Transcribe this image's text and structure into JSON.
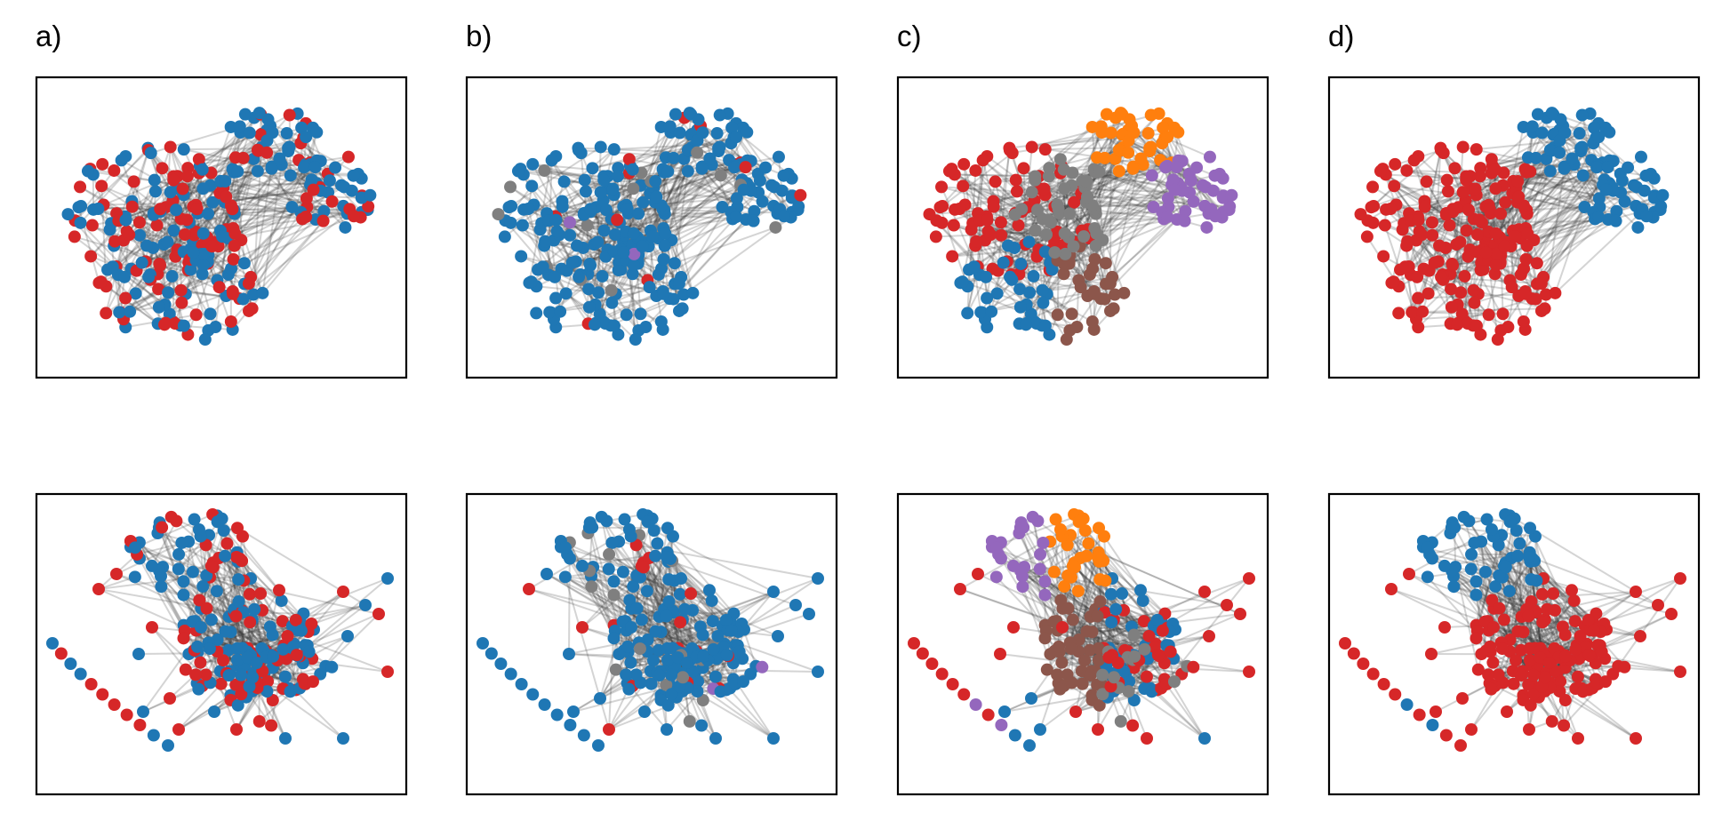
{
  "panels": [
    {
      "label": "a)"
    },
    {
      "label": "b)"
    },
    {
      "label": "c)"
    },
    {
      "label": "d)"
    }
  ],
  "colors": {
    "blue": "#1f77b4",
    "red": "#d62728",
    "gray": "#7f7f7f",
    "orange": "#ff7f0e",
    "purple": "#9467bd",
    "brown": "#8c564b",
    "edge": "#3a3a3a"
  },
  "networks": {
    "top": {
      "clusters": 5,
      "description_colors": {
        "a": [
          "blue",
          "red"
        ],
        "b": [
          "blue",
          "gray",
          "red",
          "purple"
        ],
        "c": [
          "red",
          "gray",
          "orange",
          "purple",
          "blue",
          "brown"
        ],
        "d": [
          "red",
          "blue"
        ]
      }
    },
    "bottom": {
      "isolated_nodes": 11
    }
  }
}
